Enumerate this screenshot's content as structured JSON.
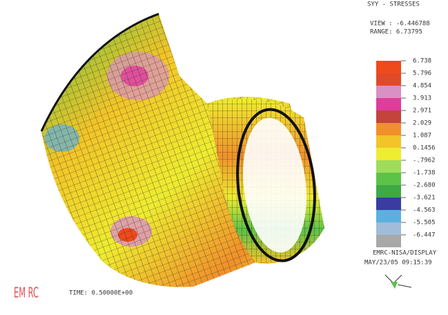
{
  "header": {
    "result": "SYY - STRESSES",
    "view": "VIEW : -6.446788",
    "range": "RANGE: 6.73795"
  },
  "legend": {
    "labels": [
      "6.738",
      "5.796",
      "4.854",
      "3.913",
      "2.971",
      "2.029",
      "1.087",
      "0.1456",
      "-.7962",
      "-1.738",
      "-2.680",
      "-3.621",
      "-4.563",
      "-5.505",
      "-6.447"
    ],
    "colors": [
      "#ee4a1c",
      "#e04a2a",
      "#d990c4",
      "#e03c9c",
      "#c2443a",
      "#f0902a",
      "#f2c428",
      "#eeec30",
      "#9fdc5c",
      "#5cc248",
      "#3eaa44",
      "#3a3ca0",
      "#5cb0e0",
      "#a0bcd8",
      "#a8a8a8"
    ]
  },
  "footer": {
    "software": "EMRC-NISA/DISPLAY",
    "date": "MAY/23/05 09:15:39",
    "time": "TIME:  0.50000E+00",
    "logo": "EM RC"
  }
}
